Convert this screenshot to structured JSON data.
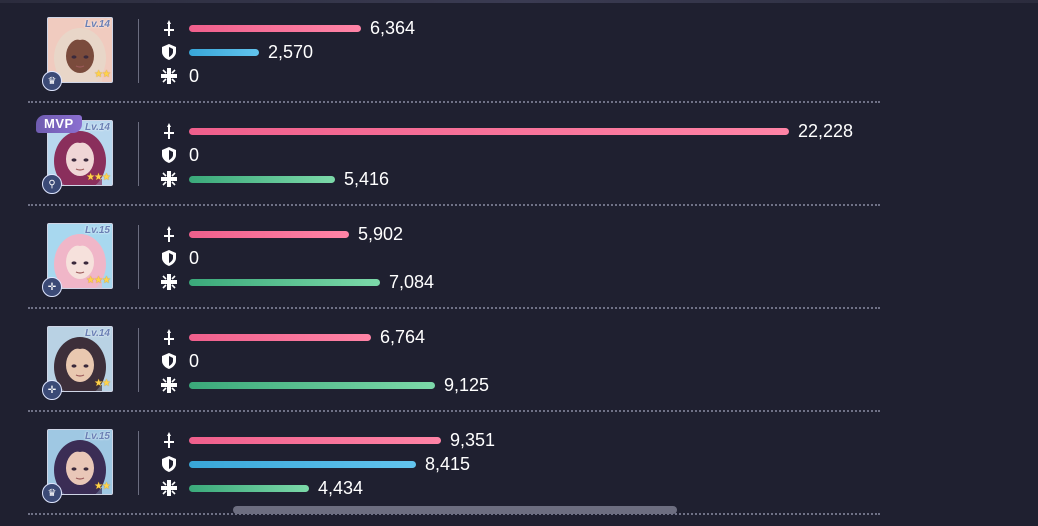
{
  "rows": [
    {
      "level": "Lv.14",
      "stars": "★★",
      "role_icon": "crown-icon",
      "mvp": false,
      "hair": "#e8d6c8",
      "skin": "#7a4b3c",
      "bg": "#f0cbbf",
      "stats": {
        "atk": "6,364",
        "def": "2,570",
        "heal": "0"
      },
      "frac": {
        "atk": 0.286,
        "def": 0.116,
        "heal": 0
      }
    },
    {
      "level": "Lv.14",
      "stars": "★★★",
      "role_icon": "spear-icon",
      "mvp": true,
      "hair": "#8a2f5c",
      "skin": "#f0d6d6",
      "bg": "#b8d7ee",
      "stats": {
        "atk": "22,228",
        "def": "0",
        "heal": "5,416"
      },
      "frac": {
        "atk": 1.0,
        "def": 0,
        "heal": 0.244
      }
    },
    {
      "level": "Lv.15",
      "stars": "★★★",
      "role_icon": "cross-icon",
      "mvp": false,
      "hair": "#f0b6c8",
      "skin": "#f6e1dc",
      "bg": "#a8d8ef",
      "stats": {
        "atk": "5,902",
        "def": "0",
        "heal": "7,084"
      },
      "frac": {
        "atk": 0.266,
        "def": 0,
        "heal": 0.319
      }
    },
    {
      "level": "Lv.14",
      "stars": "★★",
      "role_icon": "cross-icon",
      "mvp": false,
      "hair": "#3d2f3a",
      "skin": "#e9c8b0",
      "bg": "#b9d2e4",
      "stats": {
        "atk": "6,764",
        "def": "0",
        "heal": "9,125"
      },
      "frac": {
        "atk": 0.304,
        "def": 0,
        "heal": 0.41
      }
    },
    {
      "level": "Lv.15",
      "stars": "★★",
      "role_icon": "crown-icon",
      "mvp": false,
      "hair": "#3b2d55",
      "skin": "#e9c7b8",
      "bg": "#9fc8e3",
      "stats": {
        "atk": "9,351",
        "def": "8,415",
        "heal": "4,434"
      },
      "frac": {
        "atk": 0.42,
        "def": 0.379,
        "heal": 0.2
      }
    }
  ],
  "mvp_label": "MVP",
  "colors": {
    "background": "#1f2030",
    "atk": "#ef5f8c",
    "def": "#38a6d8",
    "heal": "#3aa97a"
  }
}
